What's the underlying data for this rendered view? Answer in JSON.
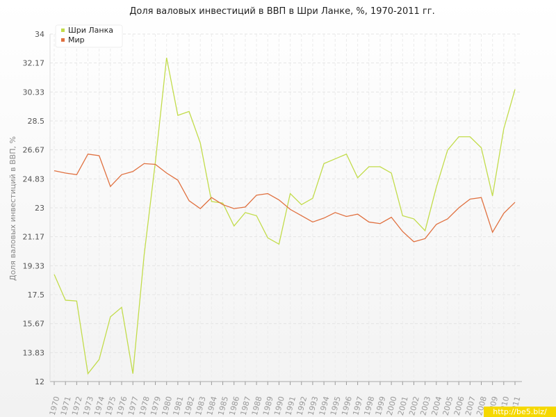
{
  "chart_data": {
    "type": "line",
    "title": "Доля валовых инвестиций в ВВП в Шри Ланке, %, 1970-2011 гг.",
    "y_label": "Доля валовых инвестиций в ВВП, %",
    "watermark": "http://be5.biz/",
    "legend": "top-left",
    "grid": true,
    "categories": [
      "1970",
      "1971",
      "1972",
      "1973",
      "1974",
      "1975",
      "1976",
      "1977",
      "1978",
      "1979",
      "1980",
      "1981",
      "1982",
      "1983",
      "1984",
      "1985",
      "1986",
      "1987",
      "1988",
      "1989",
      "1990",
      "1991",
      "1992",
      "1993",
      "1994",
      "1995",
      "1996",
      "1997",
      "1998",
      "1999",
      "2000",
      "2001",
      "2002",
      "2003",
      "2004",
      "2005",
      "2006",
      "2007",
      "2008",
      "2009",
      "2010",
      "2011"
    ],
    "ylim": [
      12,
      34
    ],
    "yticks": [
      12,
      13.83,
      15.67,
      17.5,
      19.33,
      21.17,
      23,
      24.83,
      26.67,
      28.5,
      30.33,
      32.17,
      34
    ],
    "series": [
      {
        "name": "Шри Ланка",
        "color": "#c2dc4a",
        "values": [
          18.78,
          17.15,
          17.1,
          12.5,
          13.4,
          16.1,
          16.7,
          12.5,
          20.0,
          25.9,
          32.5,
          28.85,
          29.1,
          27.1,
          23.4,
          23.3,
          21.85,
          22.7,
          22.5,
          21.1,
          20.7,
          23.9,
          23.2,
          23.6,
          25.8,
          26.1,
          26.4,
          24.9,
          25.6,
          25.6,
          25.2,
          22.5,
          22.3,
          21.55,
          24.3,
          26.65,
          27.5,
          27.5,
          26.8,
          23.75,
          28.0,
          30.5
        ]
      },
      {
        "name": "Мир",
        "color": "#e0703f",
        "values": [
          25.35,
          25.2,
          25.1,
          26.4,
          26.3,
          24.35,
          25.1,
          25.3,
          25.8,
          25.75,
          25.2,
          24.75,
          23.45,
          22.95,
          23.65,
          23.2,
          22.95,
          23.05,
          23.8,
          23.9,
          23.5,
          22.9,
          22.5,
          22.1,
          22.35,
          22.7,
          22.45,
          22.6,
          22.1,
          22.0,
          22.4,
          21.5,
          20.85,
          21.05,
          21.95,
          22.3,
          23.0,
          23.55,
          23.65,
          21.45,
          22.65,
          23.35
        ]
      }
    ]
  }
}
